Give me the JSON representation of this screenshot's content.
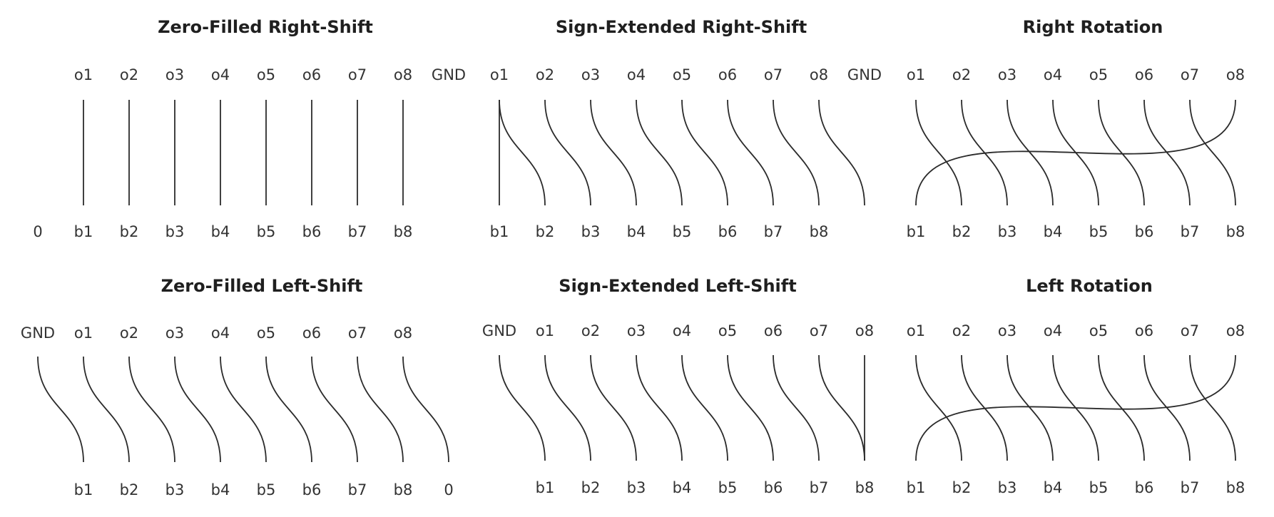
{
  "panels": [
    {
      "id": "zero-filled-right-shift",
      "title": "Zero-Filled Right-Shift",
      "top_labels": [
        "o1",
        "o2",
        "o3",
        "o4",
        "o5",
        "o6",
        "o7",
        "o8",
        "GND"
      ],
      "bottom_labels": [
        "0",
        "b1",
        "b2",
        "b3",
        "b4",
        "b5",
        "b6",
        "b7",
        "b8"
      ],
      "connections": [
        [
          0,
          1
        ],
        [
          1,
          2
        ],
        [
          2,
          3
        ],
        [
          3,
          4
        ],
        [
          4,
          5
        ],
        [
          5,
          6
        ],
        [
          6,
          7
        ],
        [
          7,
          8
        ]
      ]
    },
    {
      "id": "sign-extended-right-shift",
      "title": "Sign-Extended Right-Shift",
      "top_labels": [
        "o1",
        "o2",
        "o3",
        "o4",
        "o5",
        "o6",
        "o7",
        "o8",
        "GND"
      ],
      "bottom_labels": [
        "b1",
        "b2",
        "b3",
        "b4",
        "b5",
        "b6",
        "b7",
        "b8"
      ],
      "connections": [
        [
          0,
          0
        ],
        [
          0,
          1
        ],
        [
          1,
          2
        ],
        [
          2,
          3
        ],
        [
          3,
          4
        ],
        [
          4,
          5
        ],
        [
          5,
          6
        ],
        [
          6,
          7
        ],
        [
          7,
          8
        ]
      ]
    },
    {
      "id": "right-rotation",
      "title": "Right Rotation",
      "top_labels": [
        "o1",
        "o2",
        "o3",
        "o4",
        "o5",
        "o6",
        "o7",
        "o8"
      ],
      "bottom_labels": [
        "b1",
        "b2",
        "b3",
        "b4",
        "b5",
        "b6",
        "b7",
        "b8"
      ],
      "connections": [
        [
          0,
          1
        ],
        [
          1,
          2
        ],
        [
          2,
          3
        ],
        [
          3,
          4
        ],
        [
          4,
          5
        ],
        [
          5,
          6
        ],
        [
          6,
          7
        ],
        [
          7,
          0
        ]
      ]
    },
    {
      "id": "zero-filled-left-shift",
      "title": "Zero-Filled Left-Shift",
      "top_labels": [
        "GND",
        "o1",
        "o2",
        "o3",
        "o4",
        "o5",
        "o6",
        "o7",
        "o8"
      ],
      "bottom_labels": [
        "b1",
        "b2",
        "b3",
        "b4",
        "b5",
        "b6",
        "b7",
        "b8",
        "0"
      ],
      "connections": [
        [
          0,
          0
        ],
        [
          1,
          1
        ],
        [
          2,
          2
        ],
        [
          3,
          3
        ],
        [
          4,
          4
        ],
        [
          5,
          5
        ],
        [
          6,
          6
        ],
        [
          7,
          7
        ],
        [
          8,
          8
        ]
      ]
    },
    {
      "id": "sign-extended-left-shift",
      "title": "Sign-Extended Left-Shift",
      "top_labels": [
        "GND",
        "o1",
        "o2",
        "o3",
        "o4",
        "o5",
        "o6",
        "o7",
        "o8"
      ],
      "bottom_labels": [
        "b1",
        "b2",
        "b3",
        "b4",
        "b5",
        "b6",
        "b7",
        "b8"
      ],
      "connections": [
        [
          0,
          0
        ],
        [
          1,
          1
        ],
        [
          2,
          2
        ],
        [
          3,
          3
        ],
        [
          4,
          4
        ],
        [
          5,
          5
        ],
        [
          6,
          6
        ],
        [
          7,
          7
        ],
        [
          8,
          7
        ]
      ]
    },
    {
      "id": "left-rotation",
      "title": "Left Rotation",
      "top_labels": [
        "o1",
        "o2",
        "o3",
        "o4",
        "o5",
        "o6",
        "o7",
        "o8"
      ],
      "bottom_labels": [
        "b1",
        "b2",
        "b3",
        "b4",
        "b5",
        "b6",
        "b7",
        "b8"
      ],
      "connections": [
        [
          0,
          1
        ],
        [
          1,
          2
        ],
        [
          2,
          3
        ],
        [
          3,
          4
        ],
        [
          4,
          5
        ],
        [
          5,
          6
        ],
        [
          6,
          7
        ],
        [
          7,
          0
        ]
      ]
    }
  ]
}
